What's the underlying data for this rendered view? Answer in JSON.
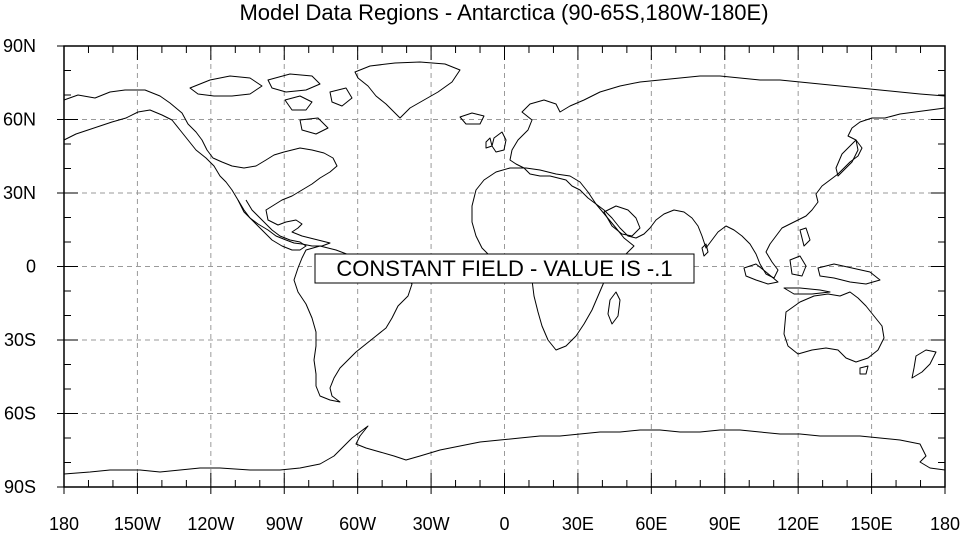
{
  "map": {
    "title": "Model Data Regions - Antarctica (90-65S,180W-180E)",
    "message": "CONSTANT FIELD - VALUE IS -.1",
    "lon_range": [
      -180,
      180
    ],
    "lat_range": [
      -90,
      90
    ],
    "lat_ticks": [
      {
        "value": 90,
        "label": "90N"
      },
      {
        "value": 60,
        "label": "60N"
      },
      {
        "value": 30,
        "label": "30N"
      },
      {
        "value": 0,
        "label": "0"
      },
      {
        "value": -30,
        "label": "30S"
      },
      {
        "value": -60,
        "label": "60S"
      },
      {
        "value": -90,
        "label": "90S"
      }
    ],
    "lon_ticks": [
      {
        "value": -180,
        "label": "180"
      },
      {
        "value": -150,
        "label": "150W"
      },
      {
        "value": -120,
        "label": "120W"
      },
      {
        "value": -90,
        "label": "90W"
      },
      {
        "value": -60,
        "label": "60W"
      },
      {
        "value": -30,
        "label": "30W"
      },
      {
        "value": 0,
        "label": "0"
      },
      {
        "value": 30,
        "label": "30E"
      },
      {
        "value": 60,
        "label": "60E"
      },
      {
        "value": 90,
        "label": "90E"
      },
      {
        "value": 120,
        "label": "120E"
      },
      {
        "value": 150,
        "label": "150E"
      },
      {
        "value": 180,
        "label": "180"
      }
    ],
    "grid": true,
    "colors": {
      "coastline": "#000000",
      "grid": "#9a9a9a",
      "frame": "#000000",
      "background": "#ffffff"
    }
  }
}
